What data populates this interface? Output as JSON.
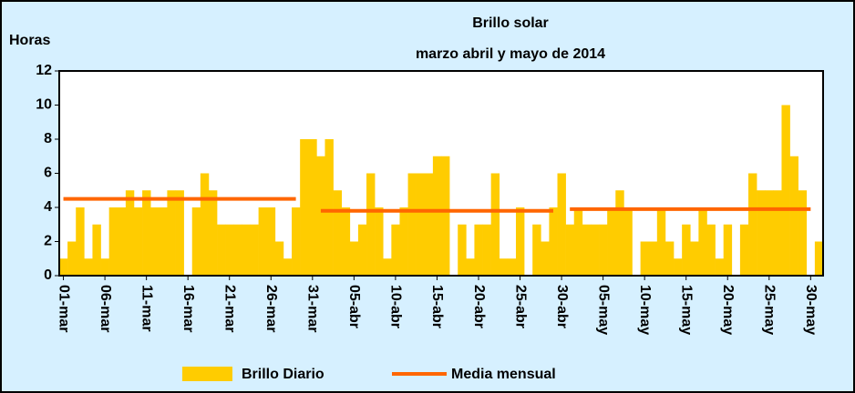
{
  "chart_data": {
    "type": "bar",
    "title": "Brillo solar",
    "subtitle": "marzo abril y mayo de 2014",
    "y_label": "Horas",
    "categories": [
      "01-mar",
      null,
      null,
      null,
      null,
      "06-mar",
      null,
      null,
      null,
      null,
      "11-mar",
      null,
      null,
      null,
      null,
      "16-mar",
      null,
      null,
      null,
      null,
      "21-mar",
      null,
      null,
      null,
      null,
      "26-mar",
      null,
      null,
      null,
      null,
      "31-mar",
      null,
      null,
      null,
      null,
      "05-abr",
      null,
      null,
      null,
      null,
      "10-abr",
      null,
      null,
      null,
      null,
      "15-abr",
      null,
      null,
      null,
      null,
      "20-abr",
      null,
      null,
      null,
      null,
      "25-abr",
      null,
      null,
      null,
      null,
      "30-abr",
      null,
      null,
      null,
      null,
      "05-may",
      null,
      null,
      null,
      null,
      "10-may",
      null,
      null,
      null,
      null,
      "15-may",
      null,
      null,
      null,
      null,
      "20-may",
      null,
      null,
      null,
      null,
      "25-may",
      null,
      null,
      null,
      null,
      "30-may",
      null
    ],
    "series": [
      {
        "name": "Brillo Diario",
        "type": "bar",
        "color": "#ffcc00",
        "values": [
          1,
          2,
          4,
          1,
          3,
          1,
          4,
          4,
          5,
          4,
          5,
          4,
          4,
          5,
          5,
          0,
          4,
          6,
          5,
          3,
          3,
          3,
          3,
          3,
          4,
          4,
          2,
          1,
          4,
          8,
          8,
          7,
          8,
          5,
          4,
          2,
          3,
          6,
          4,
          1,
          3,
          4,
          6,
          6,
          6,
          7,
          7,
          0,
          3,
          1,
          3,
          3,
          6,
          1,
          1,
          4,
          0,
          3,
          2,
          4,
          6,
          3,
          4,
          3,
          3,
          3,
          4,
          5,
          4,
          0,
          2,
          2,
          4,
          2,
          1,
          3,
          2,
          4,
          3,
          1,
          3,
          0,
          3,
          6,
          5,
          5,
          5,
          10,
          7,
          5,
          0,
          2
        ]
      },
      {
        "name": "Media mensual",
        "type": "line",
        "color": "#ff6600",
        "values": [
          4.5,
          4.5,
          4.5,
          4.5,
          4.5,
          4.5,
          4.5,
          4.5,
          4.5,
          4.5,
          4.5,
          4.5,
          4.5,
          4.5,
          4.5,
          4.5,
          4.5,
          4.5,
          4.5,
          4.5,
          4.5,
          4.5,
          4.5,
          4.5,
          4.5,
          4.5,
          4.5,
          4.5,
          4.5,
          null,
          null,
          3.8,
          3.8,
          3.8,
          3.8,
          3.8,
          3.8,
          3.8,
          3.8,
          3.8,
          3.8,
          3.8,
          3.8,
          3.8,
          3.8,
          3.8,
          3.8,
          3.8,
          3.8,
          3.8,
          3.8,
          3.8,
          3.8,
          3.8,
          3.8,
          3.8,
          3.8,
          3.8,
          3.8,
          3.8,
          null,
          3.9,
          3.9,
          3.9,
          3.9,
          3.9,
          3.9,
          3.9,
          3.9,
          3.9,
          3.9,
          3.9,
          3.9,
          3.9,
          3.9,
          3.9,
          3.9,
          3.9,
          3.9,
          3.9,
          3.9,
          3.9,
          3.9,
          3.9,
          3.9,
          3.9,
          3.9,
          3.9,
          3.9,
          3.9,
          3.9,
          null
        ]
      }
    ],
    "ylim": [
      0,
      12
    ],
    "yticks": [
      0,
      2,
      4,
      6,
      8,
      10,
      12
    ],
    "grid": false
  }
}
